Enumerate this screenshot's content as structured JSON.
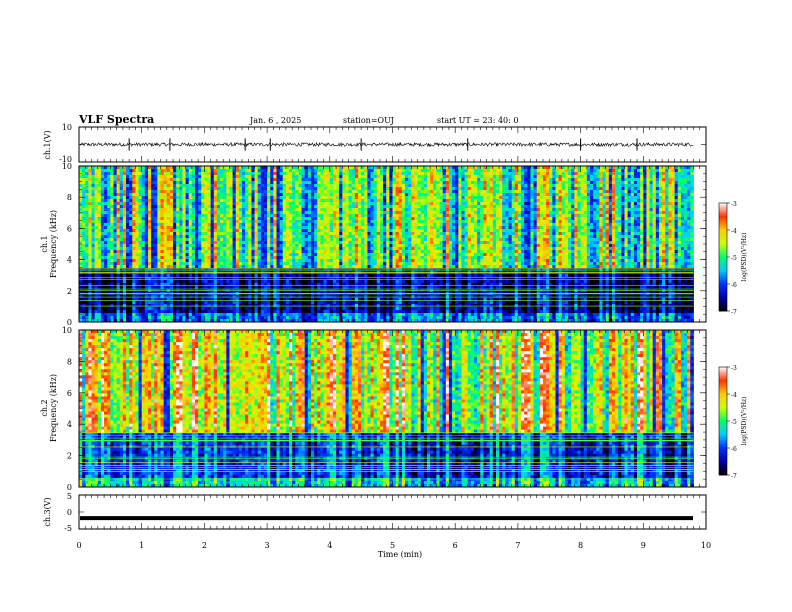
{
  "header": {
    "title": "VLF Spectra",
    "date": "Jan. 6 , 2025",
    "station": "station=OUJ",
    "start": "start UT = 23: 40: 0"
  },
  "colors": {
    "frame": "#000000",
    "colormap": [
      "#000000",
      "#0000aa",
      "#0033ff",
      "#00ccff",
      "#00ff66",
      "#ccff00",
      "#ffcc00",
      "#ff3300",
      "#ffffff"
    ]
  },
  "chart_data": [
    {
      "type": "line",
      "panel": "ch1-waveform",
      "ylabel": "ch.1(V)",
      "ylim": [
        -10,
        10
      ],
      "yticks": [
        10,
        -10
      ],
      "ytick_labels": [
        "10",
        "-10"
      ],
      "xlim": [
        0,
        10
      ],
      "series": [
        {
          "name": "ch.1",
          "baseline": 0,
          "noise_amplitude": 1,
          "spike_times_min": [
            0.8,
            1.45,
            2.65,
            3.05,
            4.5,
            6.2,
            8.0,
            8.9
          ]
        }
      ]
    },
    {
      "type": "heatmap",
      "panel": "ch1-spectrogram",
      "ylabel": "ch.1\nFrequency (kHz)",
      "ylabel_lines": [
        "ch.1",
        "Frequency (kHz)"
      ],
      "ylim": [
        0,
        10
      ],
      "yticks": [
        0,
        2,
        4,
        6,
        8,
        10
      ],
      "ytick_labels": [
        "0",
        "2",
        "4",
        "6",
        "8",
        "10"
      ],
      "xlim": [
        0,
        10
      ],
      "data_extent_min": 9.8,
      "colorbar": {
        "label": "log(PSD)(V²/Hz)",
        "range": [
          -7,
          -3
        ],
        "ticks": [
          -3,
          -4,
          -5,
          -6,
          -7
        ],
        "tick_labels": [
          "-3",
          "-4",
          "-5",
          "-6",
          "-7"
        ]
      },
      "features": {
        "low_freq_band_khz": [
          0.5,
          3.5
        ],
        "typical_log_psd_high": -4.8,
        "typical_log_psd_low": -6.5
      }
    },
    {
      "type": "heatmap",
      "panel": "ch2-spectrogram",
      "ylabel": "ch.2\nFrequency (kHz)",
      "ylabel_lines": [
        "ch.2",
        "Frequency (kHz)"
      ],
      "ylim": [
        0,
        10
      ],
      "yticks": [
        0,
        2,
        4,
        6,
        8,
        10
      ],
      "ytick_labels": [
        "0",
        "2",
        "4",
        "6",
        "8",
        "10"
      ],
      "xlim": [
        0,
        10
      ],
      "data_extent_min": 9.8,
      "colorbar": {
        "label": "log(PSD)(V²/Hz)",
        "range": [
          -7,
          -3
        ],
        "ticks": [
          -3,
          -4,
          -5,
          -6,
          -7
        ],
        "tick_labels": [
          "-3",
          "-4",
          "-5",
          "-6",
          "-7"
        ]
      },
      "features": {
        "low_freq_band_khz": [
          0.5,
          3.5
        ],
        "typical_log_psd_high": -4.2,
        "typical_log_psd_low": -6.0
      }
    },
    {
      "type": "line",
      "panel": "ch3-waveform",
      "ylabel": "ch.3(V)",
      "ylim": [
        -5,
        5
      ],
      "yticks": [
        5,
        0,
        -5
      ],
      "ytick_labels": [
        "5",
        "0",
        "-5"
      ],
      "xlim": [
        0,
        10
      ],
      "series": [
        {
          "name": "ch.3",
          "value": -1.8
        }
      ]
    }
  ],
  "xaxis": {
    "label": "Time (min)",
    "ticks": [
      0,
      1,
      2,
      3,
      4,
      5,
      6,
      7,
      8,
      9,
      10
    ],
    "tick_labels": [
      "0",
      "1",
      "2",
      "3",
      "4",
      "5",
      "6",
      "7",
      "8",
      "9",
      "10"
    ]
  }
}
